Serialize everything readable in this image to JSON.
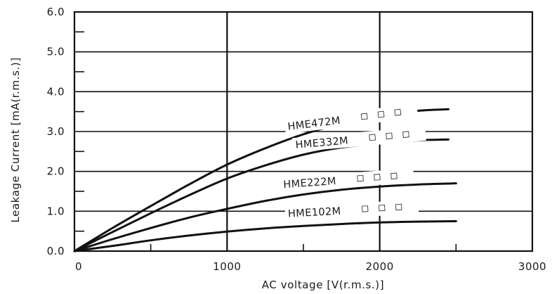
{
  "chart_data": {
    "type": "line",
    "xlabel": "AC voltage [V(r.m.s.)]",
    "ylabel": "Leakage Current  [mA(r.m.s.)]",
    "xlim": [
      0,
      3000
    ],
    "ylim": [
      0,
      6
    ],
    "x_ticks": [
      "0",
      "1000",
      "2000",
      "3000"
    ],
    "y_ticks": [
      "0.0",
      "1.0",
      "2.0",
      "3.0",
      "4.0",
      "5.0",
      "6.0"
    ],
    "grid": true,
    "colors": {
      "line": "#111111",
      "axis": "#111111",
      "background": "#ffffff"
    },
    "series": [
      {
        "name": "HME472M□ □ □",
        "label_prefix": "HME472M",
        "label_boxes": 3,
        "x": [
          0,
          250,
          500,
          750,
          1000,
          1250,
          1500,
          1750,
          2000,
          2250,
          2450
        ],
        "y": [
          0,
          0.58,
          1.13,
          1.67,
          2.17,
          2.58,
          2.93,
          3.2,
          3.4,
          3.52,
          3.56
        ]
      },
      {
        "name": "HME332M□ □ □",
        "label_prefix": "HME332M",
        "label_boxes": 3,
        "x": [
          0,
          250,
          500,
          750,
          1000,
          1250,
          1500,
          1750,
          2000,
          2250,
          2450
        ],
        "y": [
          0,
          0.48,
          0.95,
          1.4,
          1.82,
          2.15,
          2.42,
          2.6,
          2.71,
          2.78,
          2.8
        ]
      },
      {
        "name": "HME222M□ □ □",
        "label_prefix": "HME222M",
        "label_boxes": 3,
        "x": [
          0,
          250,
          500,
          750,
          1000,
          1250,
          1500,
          1750,
          2000,
          2250,
          2500
        ],
        "y": [
          0,
          0.3,
          0.58,
          0.84,
          1.06,
          1.26,
          1.42,
          1.54,
          1.62,
          1.67,
          1.7
        ]
      },
      {
        "name": "HME102M□ □ □",
        "label_prefix": "HME102M",
        "label_boxes": 3,
        "x": [
          0,
          250,
          500,
          750,
          1000,
          1250,
          1500,
          1750,
          2000,
          2250,
          2500
        ],
        "y": [
          0,
          0.13,
          0.27,
          0.39,
          0.49,
          0.57,
          0.63,
          0.68,
          0.72,
          0.74,
          0.75
        ]
      }
    ]
  }
}
